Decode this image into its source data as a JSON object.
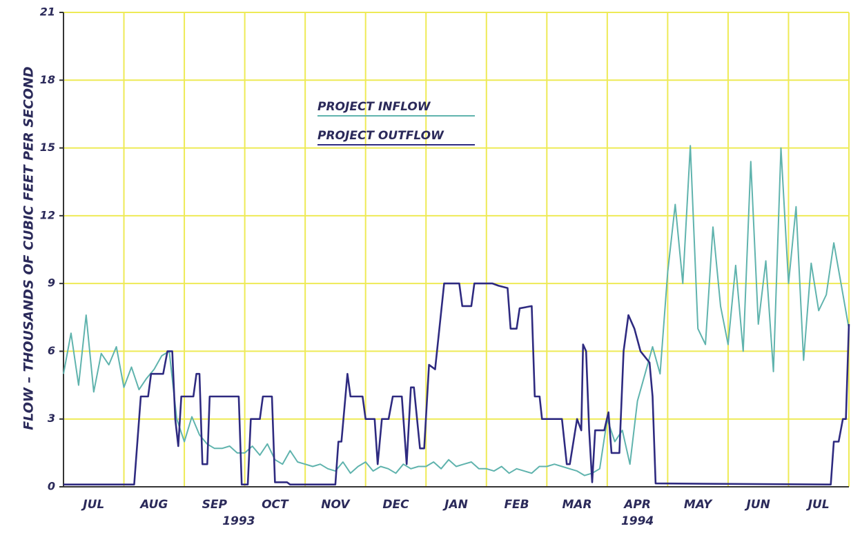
{
  "chart_data": {
    "type": "line",
    "ylabel": "FLOW – THOUSANDS OF CUBIC FEET PER SECOND",
    "ylim": [
      0,
      21
    ],
    "yticks": [
      0,
      3,
      6,
      9,
      12,
      15,
      18,
      21
    ],
    "xlim": [
      0,
      13
    ],
    "xticks": [
      {
        "value": 0.5,
        "label": "JUL"
      },
      {
        "value": 1.5,
        "label": "AUG"
      },
      {
        "value": 2.5,
        "label": "SEP"
      },
      {
        "value": 3.5,
        "label": "OCT"
      },
      {
        "value": 4.5,
        "label": "NOV"
      },
      {
        "value": 5.5,
        "label": "DEC"
      },
      {
        "value": 6.5,
        "label": "JAN"
      },
      {
        "value": 7.5,
        "label": "FEB"
      },
      {
        "value": 8.5,
        "label": "MAR"
      },
      {
        "value": 9.5,
        "label": "APR"
      },
      {
        "value": 10.5,
        "label": "MAY"
      },
      {
        "value": 11.5,
        "label": "JUN"
      },
      {
        "value": 12.5,
        "label": "JUL"
      }
    ],
    "year_labels": [
      "1993",
      "1994"
    ],
    "grid": true,
    "grid_color": "#eeea55",
    "series": [
      {
        "name": "PROJECT INFLOW",
        "color": "#5fb3ad",
        "x": [
          0,
          0.125,
          0.25,
          0.375,
          0.5,
          0.625,
          0.75,
          0.875,
          1,
          1.125,
          1.25,
          1.375,
          1.5,
          1.625,
          1.75,
          1.875,
          2,
          2.125,
          2.25,
          2.375,
          2.5,
          2.625,
          2.75,
          2.875,
          3,
          3.125,
          3.25,
          3.375,
          3.5,
          3.625,
          3.75,
          3.875,
          4,
          4.125,
          4.25,
          4.375,
          4.5,
          4.625,
          4.75,
          4.875,
          5,
          5.125,
          5.25,
          5.375,
          5.5,
          5.625,
          5.75,
          5.875,
          6,
          6.125,
          6.25,
          6.375,
          6.5,
          6.625,
          6.75,
          6.875,
          7,
          7.125,
          7.25,
          7.375,
          7.5,
          7.625,
          7.75,
          7.875,
          8,
          8.125,
          8.25,
          8.375,
          8.5,
          8.625,
          8.75,
          8.875,
          9,
          9.125,
          9.25,
          9.375,
          9.5,
          9.625,
          9.75,
          9.875,
          10,
          10.125,
          10.25,
          10.375,
          10.5,
          10.625,
          10.75,
          10.875,
          11,
          11.125,
          11.25,
          11.375,
          11.5,
          11.625,
          11.75,
          11.875,
          12,
          12.125,
          12.25,
          12.375,
          12.5,
          12.625,
          12.75,
          12.875,
          13
        ],
        "values": [
          5.0,
          6.8,
          4.5,
          7.6,
          4.2,
          5.9,
          5.4,
          6.2,
          4.4,
          5.3,
          4.3,
          4.8,
          5.2,
          5.8,
          6.0,
          3.0,
          2.0,
          3.1,
          2.3,
          1.9,
          1.7,
          1.7,
          1.8,
          1.5,
          1.5,
          1.8,
          1.4,
          1.9,
          1.2,
          1.0,
          1.6,
          1.1,
          1.0,
          0.9,
          1.0,
          0.8,
          0.7,
          1.1,
          0.6,
          0.9,
          1.1,
          0.7,
          0.9,
          0.8,
          0.6,
          1.0,
          0.8,
          0.9,
          0.9,
          1.1,
          0.8,
          1.2,
          0.9,
          1.0,
          1.1,
          0.8,
          0.8,
          0.7,
          0.9,
          0.6,
          0.8,
          0.7,
          0.6,
          0.9,
          0.9,
          1.0,
          0.9,
          0.8,
          0.7,
          0.5,
          0.6,
          0.8,
          3.0,
          2.0,
          2.5,
          1.0,
          3.8,
          5.0,
          6.2,
          5.0,
          9.5,
          12.5,
          9.0,
          15.1,
          7.0,
          6.3,
          11.5,
          8.0,
          6.3,
          9.8,
          6.0,
          14.4,
          7.2,
          10.0,
          5.1,
          15.0,
          9.0,
          12.4,
          5.6,
          9.9,
          7.8,
          8.5,
          10.8,
          8.9,
          7.0
        ]
      },
      {
        "name": "PROJECT OUTFLOW",
        "color": "#2e2a80",
        "x": [
          0,
          1.17,
          1.28,
          1.4,
          1.45,
          1.65,
          1.72,
          1.8,
          1.85,
          1.9,
          1.95,
          2.15,
          2.2,
          2.25,
          2.3,
          2.38,
          2.42,
          2.9,
          2.95,
          3.05,
          3.1,
          3.25,
          3.3,
          3.45,
          3.5,
          3.7,
          3.75,
          4.5,
          4.55,
          4.6,
          4.7,
          4.75,
          4.95,
          5.0,
          5.15,
          5.2,
          5.27,
          5.38,
          5.45,
          5.6,
          5.68,
          5.75,
          5.8,
          5.9,
          5.97,
          6.05,
          6.15,
          6.3,
          6.55,
          6.6,
          6.75,
          6.8,
          7.1,
          7.2,
          7.35,
          7.4,
          7.5,
          7.55,
          7.75,
          7.8,
          7.88,
          7.92,
          8.2,
          8.25,
          8.33,
          8.38,
          8.5,
          8.57,
          8.6,
          8.65,
          8.7,
          8.75,
          8.8,
          8.95,
          9.02,
          9.07,
          9.2,
          9.27,
          9.35,
          9.45,
          9.55,
          9.7,
          9.75,
          9.8,
          12.7,
          12.75,
          12.83,
          12.9,
          12.95,
          13.0
        ],
        "values": [
          0.1,
          0.1,
          4,
          4,
          5,
          5,
          6,
          6,
          3,
          1.8,
          4,
          4,
          5,
          5,
          1,
          1,
          4,
          4,
          0.1,
          0.1,
          3,
          3,
          4,
          4,
          0.2,
          0.2,
          0.1,
          0.1,
          2,
          2,
          5,
          4,
          4,
          3,
          3,
          1,
          3,
          3,
          4,
          4,
          1,
          4.4,
          4.4,
          1.7,
          1.7,
          5.4,
          5.2,
          9,
          9,
          8,
          8,
          9,
          9,
          8.9,
          8.8,
          7,
          7,
          7.9,
          8,
          4,
          4,
          3,
          3,
          3,
          1,
          1,
          3,
          2.5,
          6.3,
          6,
          2.5,
          0.2,
          2.5,
          2.5,
          3.3,
          1.5,
          1.5,
          6,
          7.6,
          7,
          6,
          5.5,
          4,
          0.15,
          0.1,
          2,
          2,
          3,
          3,
          7.2
        ]
      }
    ]
  }
}
